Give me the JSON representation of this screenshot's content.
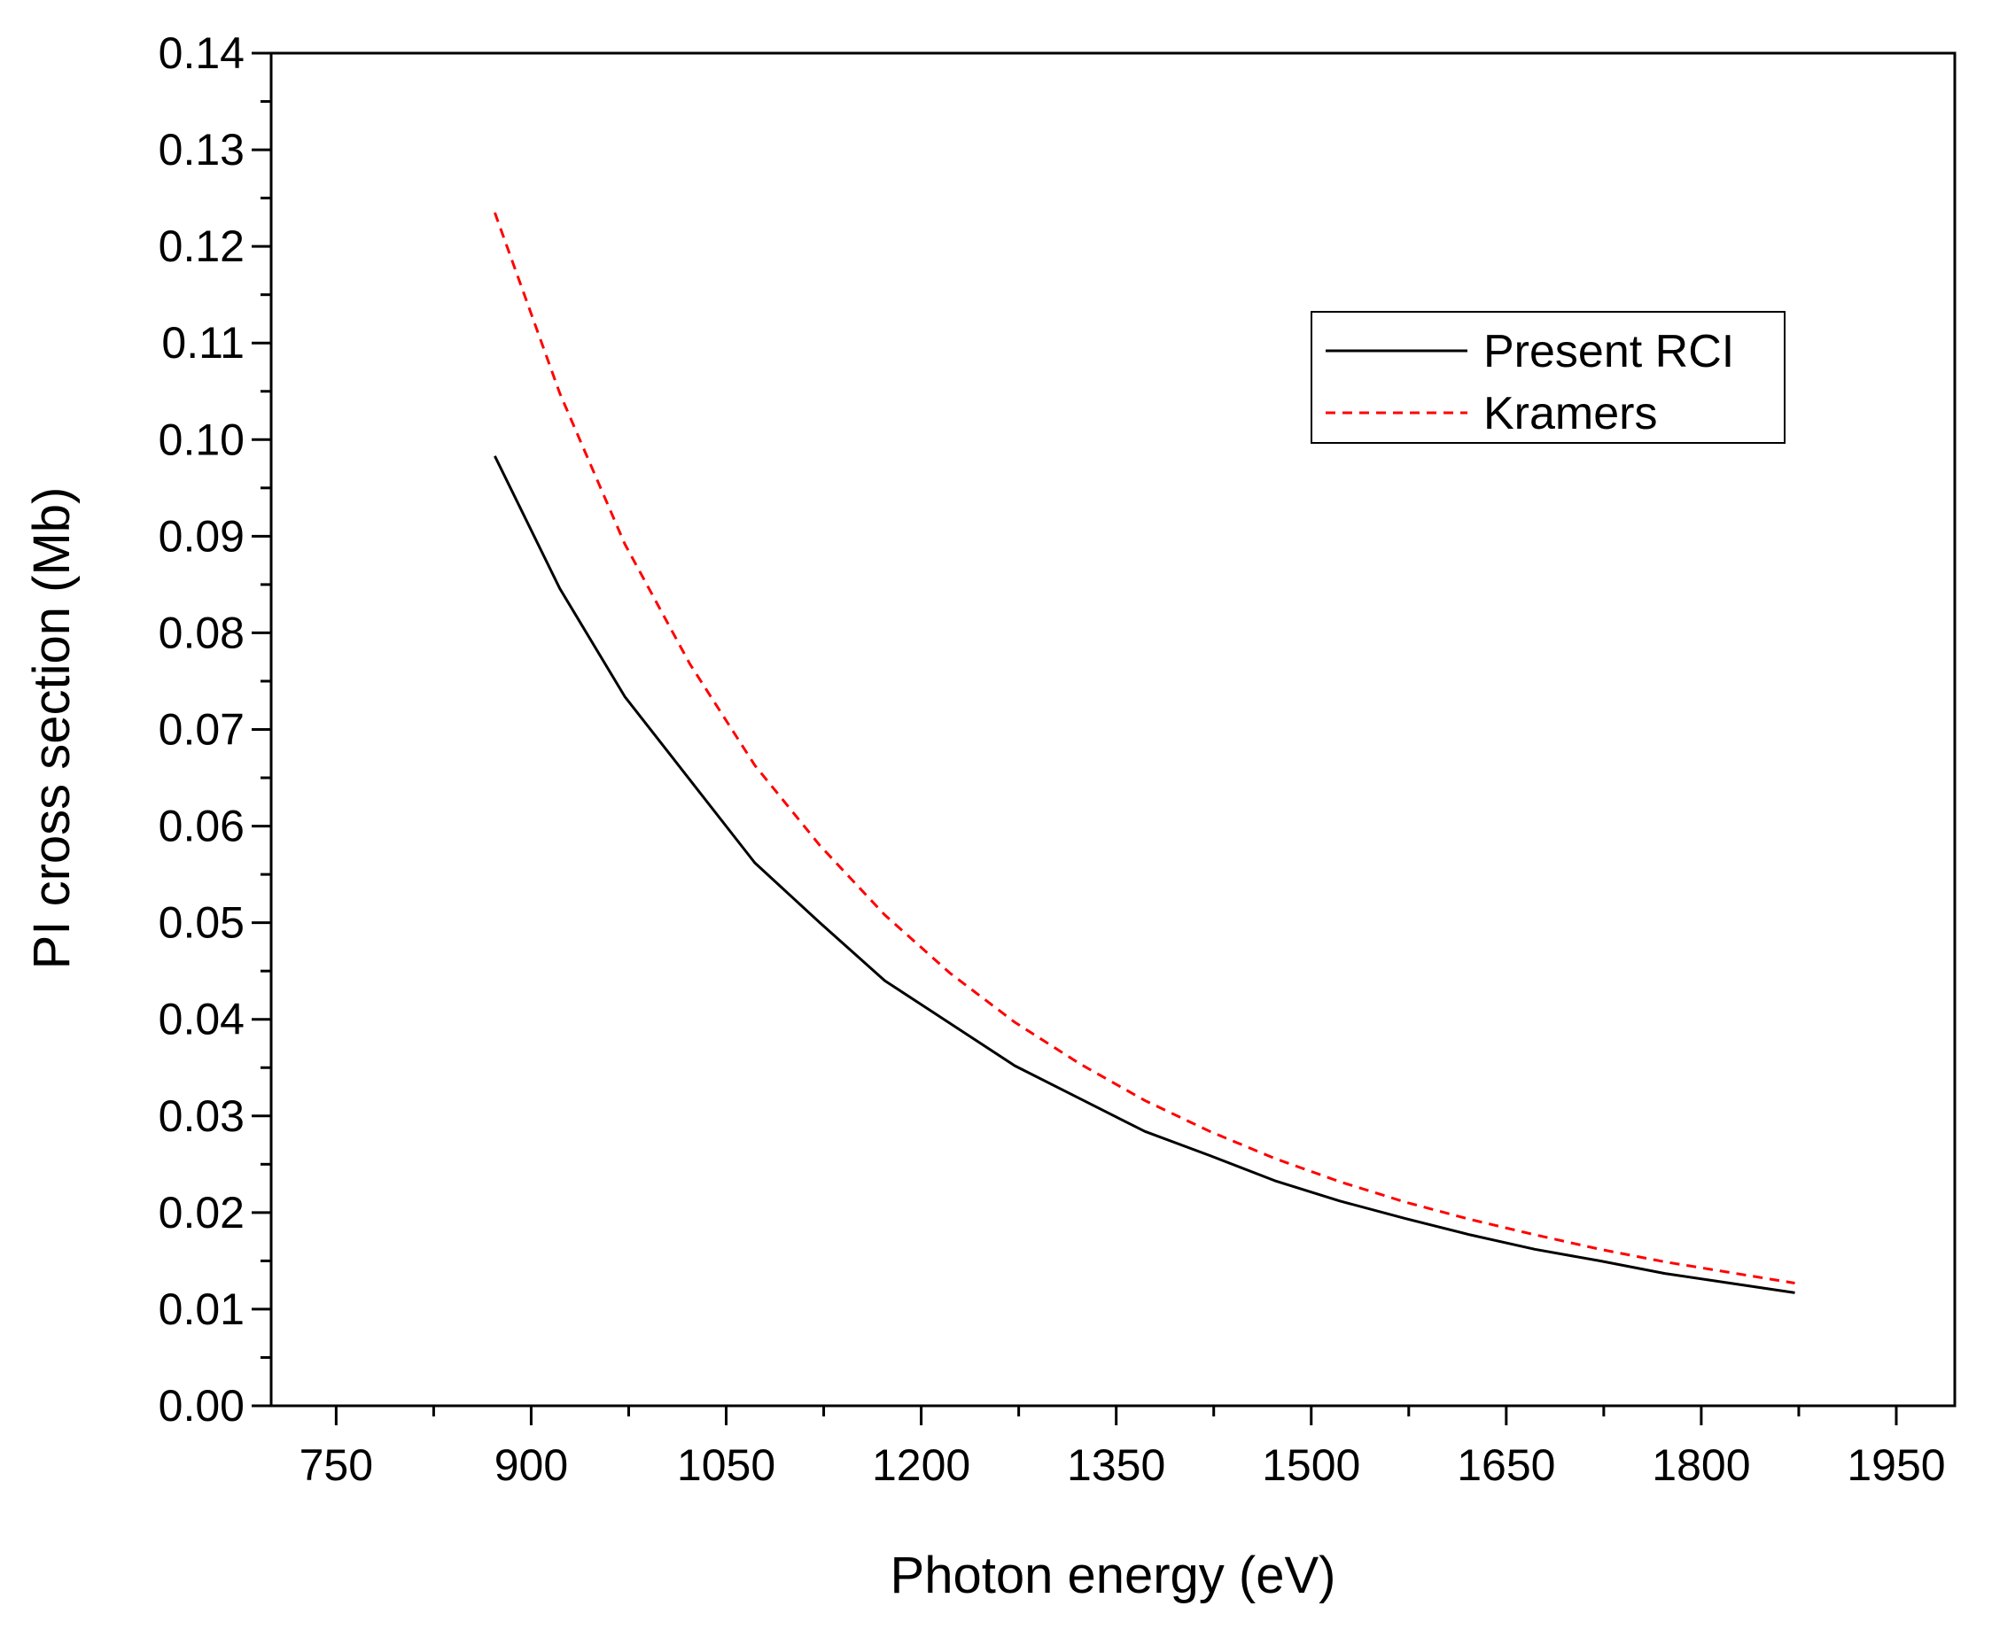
{
  "chart_data": {
    "type": "line",
    "title": "",
    "xlabel": "Photon energy (eV)",
    "ylabel": "PI cross section (Mb)",
    "xlim": [
      700,
      1995
    ],
    "ylim": [
      0,
      0.14
    ],
    "xticks": [
      750,
      900,
      1050,
      1200,
      1350,
      1500,
      1650,
      1800,
      1950
    ],
    "xtick_labels": [
      "750",
      "900",
      "1050",
      "1200",
      "1350",
      "1500",
      "1650",
      "1800",
      "1950"
    ],
    "yticks": [
      0,
      0.01,
      0.02,
      0.03,
      0.04,
      0.05,
      0.06,
      0.07,
      0.08,
      0.09,
      0.1,
      0.11,
      0.12,
      0.13,
      0.14
    ],
    "ytick_labels": [
      "0.00",
      "0.01",
      "0.02",
      "0.03",
      "0.04",
      "0.05",
      "0.06",
      "0.07",
      "0.08",
      "0.09",
      "0.10",
      "0.11",
      "0.12",
      "0.13",
      "0.14"
    ],
    "grid": false,
    "legend_position": "top-right",
    "series": [
      {
        "name": "Present RCI",
        "color": "#000000",
        "style": "solid",
        "x": [
          872,
          922,
          972,
          1022,
          1072,
          1122,
          1172,
          1222,
          1272,
          1322,
          1372,
          1422,
          1472,
          1522,
          1572,
          1622,
          1672,
          1722,
          1772,
          1822,
          1872
        ],
        "y": [
          0.0983,
          0.0846,
          0.0734,
          0.0648,
          0.0562,
          0.05,
          0.044,
          0.0396,
          0.0352,
          0.0318,
          0.0284,
          0.0259,
          0.0233,
          0.0212,
          0.0194,
          0.0177,
          0.0162,
          0.015,
          0.0137,
          0.0127,
          0.0117
        ]
      },
      {
        "name": "Kramers",
        "color": "#ff0000",
        "style": "dashed",
        "x": [
          872,
          922,
          972,
          1022,
          1072,
          1122,
          1172,
          1222,
          1272,
          1322,
          1372,
          1422,
          1472,
          1522,
          1572,
          1622,
          1672,
          1722,
          1772,
          1822,
          1872
        ],
        "y": [
          0.1235,
          0.1048,
          0.0892,
          0.0768,
          0.0663,
          0.058,
          0.0508,
          0.0448,
          0.0397,
          0.0354,
          0.0316,
          0.0284,
          0.0256,
          0.0232,
          0.0211,
          0.0193,
          0.0177,
          0.0162,
          0.0149,
          0.0138,
          0.0127
        ]
      }
    ]
  }
}
